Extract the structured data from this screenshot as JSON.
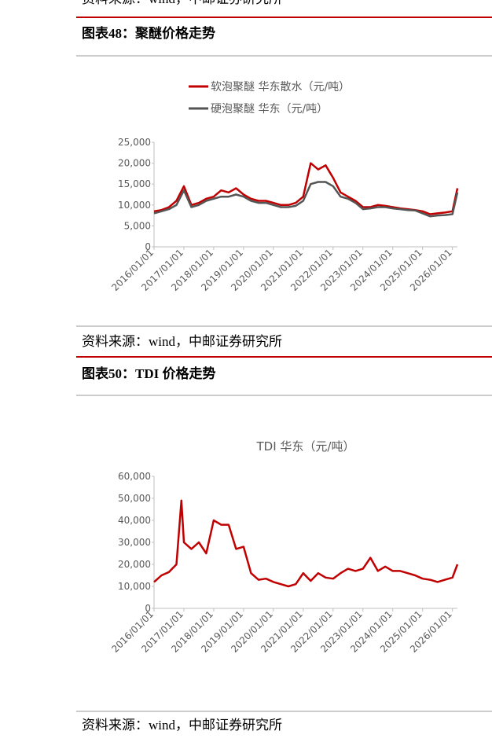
{
  "top_source": "资料来源：wind，中邮证券研究所",
  "header1": "图表48：聚醚价格走势",
  "source1": "资料来源：wind，中邮证券研究所",
  "header2": "图表50：TDI 价格走势",
  "source2": "资料来源：wind，中邮证券研究所",
  "chart_data": [
    {
      "type": "line",
      "x": [
        "2016/01/01",
        "2016/04/01",
        "2016/07/01",
        "2016/10/01",
        "2017/01/01",
        "2017/04/01",
        "2017/07/01",
        "2017/10/01",
        "2018/01/01",
        "2018/04/01",
        "2018/07/01",
        "2018/10/01",
        "2019/01/01",
        "2019/04/01",
        "2019/07/01",
        "2019/10/01",
        "2020/01/01",
        "2020/04/01",
        "2020/07/01",
        "2020/10/01",
        "2021/01/01",
        "2021/04/01",
        "2021/07/01",
        "2021/10/01",
        "2022/01/01",
        "2022/04/01",
        "2022/07/01",
        "2022/10/01",
        "2023/01/01",
        "2023/04/01",
        "2023/07/01",
        "2023/10/01",
        "2024/01/01",
        "2024/04/01",
        "2024/07/01",
        "2024/10/01",
        "2025/01/01",
        "2025/04/01",
        "2025/07/01",
        "2025/10/01",
        "2026/01/01",
        "2026/03/01"
      ],
      "series": [
        {
          "name": "软泡聚醚 华东散水（元/吨）",
          "color": "#c00000",
          "values": [
            8500,
            8800,
            9500,
            11000,
            14500,
            10000,
            10500,
            11500,
            12000,
            13500,
            13000,
            14000,
            12500,
            11500,
            11000,
            11000,
            10500,
            10000,
            10000,
            10500,
            12000,
            20000,
            18500,
            19500,
            16500,
            13000,
            12000,
            11000,
            9500,
            9500,
            10000,
            9800,
            9500,
            9200,
            9000,
            8800,
            8500,
            7800,
            8000,
            8200,
            8500,
            14000
          ]
        },
        {
          "name": "硬泡聚醚 华东（元/吨）",
          "color": "#555555",
          "values": [
            8000,
            8500,
            9000,
            10000,
            13500,
            9500,
            10000,
            11000,
            11500,
            12000,
            12000,
            12500,
            12000,
            11000,
            10500,
            10500,
            10000,
            9500,
            9500,
            9800,
            11000,
            15000,
            15500,
            15500,
            14500,
            12000,
            11500,
            10500,
            9000,
            9200,
            9500,
            9500,
            9200,
            9000,
            8800,
            8700,
            8000,
            7300,
            7500,
            7600,
            7800,
            13000
          ]
        }
      ],
      "xlim": [
        "2016/01/01",
        "2026/03/01"
      ],
      "xticks": [
        "2016/01/01",
        "2017/01/01",
        "2018/01/01",
        "2019/01/01",
        "2020/01/01",
        "2021/01/01",
        "2022/01/01",
        "2023/01/01",
        "2024/01/01",
        "2025/01/01",
        "2026/01/01"
      ],
      "ylim": [
        0,
        25000
      ],
      "yticks": [
        0,
        {
          "value": 5000,
          "label": "5,000"
        },
        {
          "value": 10000,
          "label": "10,000"
        },
        {
          "value": 15000,
          "label": "15,000"
        },
        {
          "value": 20000,
          "label": "20,000"
        },
        {
          "value": 25000,
          "label": "25,000"
        }
      ],
      "legend": "top"
    },
    {
      "type": "line",
      "title": "TDI 华东（元/吨）",
      "x": [
        "2016/01/01",
        "2016/04/01",
        "2016/07/01",
        "2016/10/01",
        "2016/12/01",
        "2017/01/01",
        "2017/04/01",
        "2017/07/01",
        "2017/10/01",
        "2018/01/01",
        "2018/04/01",
        "2018/07/01",
        "2018/10/01",
        "2019/01/01",
        "2019/04/01",
        "2019/07/01",
        "2019/10/01",
        "2020/01/01",
        "2020/04/01",
        "2020/07/01",
        "2020/10/01",
        "2021/01/01",
        "2021/04/01",
        "2021/07/01",
        "2021/10/01",
        "2022/01/01",
        "2022/04/01",
        "2022/07/01",
        "2022/10/01",
        "2023/01/01",
        "2023/04/01",
        "2023/07/01",
        "2023/10/01",
        "2024/01/01",
        "2024/04/01",
        "2024/07/01",
        "2024/10/01",
        "2025/01/01",
        "2025/04/01",
        "2025/07/01",
        "2025/10/01",
        "2026/01/01",
        "2026/03/01"
      ],
      "series": [
        {
          "color": "#c00000",
          "values": [
            12000,
            15000,
            16500,
            20000,
            49000,
            30000,
            27000,
            30000,
            25000,
            40000,
            38000,
            38000,
            27000,
            28000,
            16000,
            13000,
            13500,
            12000,
            11000,
            10000,
            11000,
            16000,
            12500,
            16000,
            14000,
            13500,
            16000,
            18000,
            17000,
            18000,
            23000,
            17000,
            19000,
            17000,
            17000,
            16000,
            15000,
            13500,
            13000,
            12000,
            13000,
            14000,
            20000
          ]
        }
      ],
      "xlim": [
        "2016/01/01",
        "2026/03/01"
      ],
      "xticks": [
        "2016/01/01",
        "2017/01/01",
        "2018/01/01",
        "2019/01/01",
        "2020/01/01",
        "2021/01/01",
        "2022/01/01",
        "2023/01/01",
        "2024/01/01",
        "2025/01/01",
        "2026/01/01"
      ],
      "ylim": [
        0,
        60000
      ],
      "yticks": [
        0,
        {
          "value": 10000,
          "label": "10,000"
        },
        {
          "value": 20000,
          "label": "20,000"
        },
        {
          "value": 30000,
          "label": "30,000"
        },
        {
          "value": 40000,
          "label": "40,000"
        },
        {
          "value": 50000,
          "label": "50,000"
        },
        {
          "value": 60000,
          "label": "60,000"
        }
      ]
    }
  ]
}
